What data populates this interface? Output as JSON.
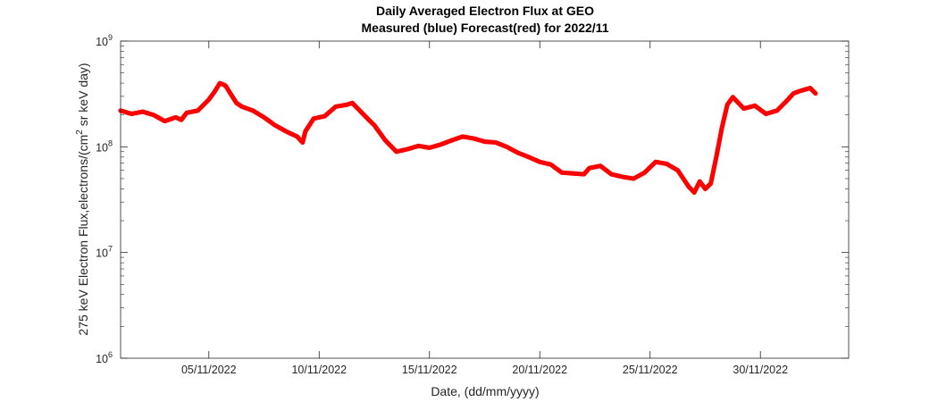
{
  "chart_data": {
    "type": "scatter",
    "title": "Daily Averaged Electron Flux at GEO",
    "subtitle": "Measured (blue) Forecast(red) for 2022/11",
    "xlabel": "Date, (dd/mm/yyyy)",
    "ylabel": "275 keV Electron Flux,electrons/(cm",
    "ylabel_sup": "2",
    "ylabel_tail": " sr keV day)",
    "y_scale": "log",
    "ylim": [
      1000000,
      1000000000
    ],
    "xlim": [
      "2022-11-01",
      "2022-12-04"
    ],
    "x_ticks": [
      "05/11/2022",
      "10/11/2022",
      "15/11/2022",
      "20/11/2022",
      "25/11/2022",
      "30/11/2022"
    ],
    "y_ticks": [
      {
        "base": "10",
        "exp": "6"
      },
      {
        "base": "10",
        "exp": "7"
      },
      {
        "base": "10",
        "exp": "8"
      },
      {
        "base": "10",
        "exp": "9"
      }
    ],
    "series": [
      {
        "color": "#ff0000",
        "points": [
          [
            "2022-11-01 00:00",
            220000000.0
          ],
          [
            "2022-11-01 12:00",
            205000000.0
          ],
          [
            "2022-11-02 00:00",
            215000000.0
          ],
          [
            "2022-11-02 12:00",
            200000000.0
          ],
          [
            "2022-11-03 00:00",
            175000000.0
          ],
          [
            "2022-11-03 12:00",
            190000000.0
          ],
          [
            "2022-11-03 18:00",
            180000000.0
          ],
          [
            "2022-11-04 00:00",
            210000000.0
          ],
          [
            "2022-11-04 12:00",
            220000000.0
          ],
          [
            "2022-11-05 00:00",
            280000000.0
          ],
          [
            "2022-11-05 06:00",
            330000000.0
          ],
          [
            "2022-11-05 12:00",
            400000000.0
          ],
          [
            "2022-11-05 18:00",
            380000000.0
          ],
          [
            "2022-11-06 06:00",
            260000000.0
          ],
          [
            "2022-11-06 12:00",
            240000000.0
          ],
          [
            "2022-11-07 00:00",
            220000000.0
          ],
          [
            "2022-11-07 12:00",
            190000000.0
          ],
          [
            "2022-11-08 00:00",
            160000000.0
          ],
          [
            "2022-11-08 12:00",
            140000000.0
          ],
          [
            "2022-11-09 00:00",
            125000000.0
          ],
          [
            "2022-11-09 06:00",
            110000000.0
          ],
          [
            "2022-11-09 09:00",
            140000000.0
          ],
          [
            "2022-11-09 18:00",
            185000000.0
          ],
          [
            "2022-11-10 06:00",
            195000000.0
          ],
          [
            "2022-11-10 18:00",
            240000000.0
          ],
          [
            "2022-11-11 06:00",
            250000000.0
          ],
          [
            "2022-11-11 12:00",
            260000000.0
          ],
          [
            "2022-11-11 18:00",
            230000000.0
          ],
          [
            "2022-11-12 06:00",
            180000000.0
          ],
          [
            "2022-11-12 12:00",
            160000000.0
          ],
          [
            "2022-11-13 00:00",
            115000000.0
          ],
          [
            "2022-11-13 12:00",
            90000000.0
          ],
          [
            "2022-11-14 00:00",
            95000000.0
          ],
          [
            "2022-11-14 12:00",
            102000000.0
          ],
          [
            "2022-11-15 00:00",
            98000000.0
          ],
          [
            "2022-11-15 12:00",
            105000000.0
          ],
          [
            "2022-11-16 00:00",
            115000000.0
          ],
          [
            "2022-11-16 12:00",
            125000000.0
          ],
          [
            "2022-11-17 00:00",
            120000000.0
          ],
          [
            "2022-11-17 12:00",
            112000000.0
          ],
          [
            "2022-11-18 00:00",
            110000000.0
          ],
          [
            "2022-11-18 12:00",
            100000000.0
          ],
          [
            "2022-11-19 00:00",
            88000000.0
          ],
          [
            "2022-11-19 12:00",
            80000000.0
          ],
          [
            "2022-11-20 00:00",
            72000000.0
          ],
          [
            "2022-11-20 12:00",
            68000000.0
          ],
          [
            "2022-11-21 00:00",
            57000000.0
          ],
          [
            "2022-11-21 12:00",
            56000000.0
          ],
          [
            "2022-11-22 00:00",
            55000000.0
          ],
          [
            "2022-11-22 06:00",
            63000000.0
          ],
          [
            "2022-11-22 18:00",
            66000000.0
          ],
          [
            "2022-11-23 06:00",
            55000000.0
          ],
          [
            "2022-11-23 18:00",
            52000000.0
          ],
          [
            "2022-11-24 06:00",
            50000000.0
          ],
          [
            "2022-11-24 18:00",
            57000000.0
          ],
          [
            "2022-11-25 06:00",
            72000000.0
          ],
          [
            "2022-11-25 18:00",
            69000000.0
          ],
          [
            "2022-11-26 06:00",
            60000000.0
          ],
          [
            "2022-11-26 18:00",
            42000000.0
          ],
          [
            "2022-11-27 00:00",
            37000000.0
          ],
          [
            "2022-11-27 06:00",
            47000000.0
          ],
          [
            "2022-11-27 12:00",
            40000000.0
          ],
          [
            "2022-11-27 18:00",
            45000000.0
          ],
          [
            "2022-11-28 00:00",
            80000000.0
          ],
          [
            "2022-11-28 06:00",
            150000000.0
          ],
          [
            "2022-11-28 12:00",
            250000000.0
          ],
          [
            "2022-11-28 18:00",
            295000000.0
          ],
          [
            "2022-11-29 06:00",
            230000000.0
          ],
          [
            "2022-11-29 18:00",
            245000000.0
          ],
          [
            "2022-11-30 06:00",
            205000000.0
          ],
          [
            "2022-11-30 18:00",
            220000000.0
          ],
          [
            "2022-12-01 06:00",
            280000000.0
          ],
          [
            "2022-12-01 12:00",
            320000000.0
          ],
          [
            "2022-12-01 18:00",
            335000000.0
          ],
          [
            "2022-12-02 06:00",
            360000000.0
          ],
          [
            "2022-12-02 12:00",
            320000000.0
          ]
        ]
      }
    ]
  }
}
